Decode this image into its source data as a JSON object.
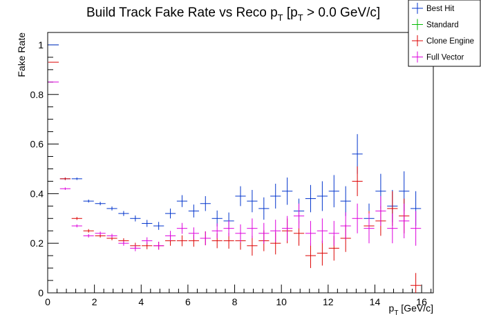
{
  "chart_data": {
    "type": "scatter",
    "title": {
      "main": "Build Track Fake Rate vs Reco p",
      "sub1": "T",
      "mid": " [p",
      "sub2": "T",
      "tail": " > 0.0 GeV/c]"
    },
    "xlabel": {
      "main": "p",
      "sub": "T",
      "tail": " [GeV/c]"
    },
    "ylabel": "Fake Rate",
    "xlim": [
      0,
      16.5
    ],
    "ylim": [
      0,
      1.05
    ],
    "xticks": [
      "0",
      "2",
      "4",
      "6",
      "8",
      "10",
      "12",
      "14",
      "16"
    ],
    "yticks": [
      "0",
      "0.2",
      "0.4",
      "0.6",
      "0.8",
      "1"
    ],
    "legend_position": "top-right",
    "series": [
      {
        "name": "Best Hit",
        "color": "#0033cc",
        "points": [
          [
            0.25,
            1.0,
            0.0
          ],
          [
            0.75,
            0.46,
            0.005
          ],
          [
            1.25,
            0.46,
            0.005
          ],
          [
            1.75,
            0.37,
            0.006
          ],
          [
            2.25,
            0.36,
            0.007
          ],
          [
            2.75,
            0.34,
            0.008
          ],
          [
            3.25,
            0.32,
            0.01
          ],
          [
            3.75,
            0.3,
            0.012
          ],
          [
            4.25,
            0.28,
            0.014
          ],
          [
            4.75,
            0.27,
            0.016
          ],
          [
            5.25,
            0.32,
            0.02
          ],
          [
            5.75,
            0.37,
            0.024
          ],
          [
            6.25,
            0.33,
            0.026
          ],
          [
            6.75,
            0.36,
            0.03
          ],
          [
            7.25,
            0.3,
            0.032
          ],
          [
            7.75,
            0.29,
            0.034
          ],
          [
            8.25,
            0.39,
            0.04
          ],
          [
            8.75,
            0.37,
            0.045
          ],
          [
            9.25,
            0.34,
            0.045
          ],
          [
            9.75,
            0.39,
            0.05
          ],
          [
            10.25,
            0.41,
            0.055
          ],
          [
            10.75,
            0.33,
            0.05
          ],
          [
            11.25,
            0.38,
            0.055
          ],
          [
            11.75,
            0.39,
            0.06
          ],
          [
            12.25,
            0.41,
            0.065
          ],
          [
            12.75,
            0.37,
            0.06
          ],
          [
            13.25,
            0.56,
            0.08
          ],
          [
            13.75,
            0.3,
            0.06
          ],
          [
            14.25,
            0.41,
            0.07
          ],
          [
            14.75,
            0.35,
            0.065
          ],
          [
            15.25,
            0.41,
            0.08
          ],
          [
            15.75,
            0.34,
            0.07
          ]
        ]
      },
      {
        "name": "Standard",
        "color": "#00bb00",
        "points": []
      },
      {
        "name": "Clone Engine",
        "color": "#dd0000",
        "points": [
          [
            0.25,
            0.93,
            0.0
          ],
          [
            0.75,
            0.46,
            0.005
          ],
          [
            1.25,
            0.3,
            0.006
          ],
          [
            1.75,
            0.25,
            0.007
          ],
          [
            2.25,
            0.23,
            0.007
          ],
          [
            2.75,
            0.22,
            0.008
          ],
          [
            3.25,
            0.21,
            0.01
          ],
          [
            3.75,
            0.19,
            0.012
          ],
          [
            4.25,
            0.19,
            0.014
          ],
          [
            4.75,
            0.19,
            0.016
          ],
          [
            5.25,
            0.21,
            0.02
          ],
          [
            5.75,
            0.21,
            0.022
          ],
          [
            6.25,
            0.21,
            0.024
          ],
          [
            6.75,
            0.22,
            0.028
          ],
          [
            7.25,
            0.21,
            0.03
          ],
          [
            7.75,
            0.21,
            0.032
          ],
          [
            8.25,
            0.21,
            0.036
          ],
          [
            8.75,
            0.19,
            0.04
          ],
          [
            9.25,
            0.21,
            0.042
          ],
          [
            9.75,
            0.2,
            0.045
          ],
          [
            10.25,
            0.25,
            0.05
          ],
          [
            10.75,
            0.24,
            0.05
          ],
          [
            11.25,
            0.15,
            0.05
          ],
          [
            11.75,
            0.16,
            0.05
          ],
          [
            12.25,
            0.18,
            0.05
          ],
          [
            12.75,
            0.22,
            0.055
          ],
          [
            13.25,
            0.45,
            0.06
          ],
          [
            13.75,
            0.27,
            0.06
          ],
          [
            14.25,
            0.29,
            0.06
          ],
          [
            14.75,
            0.34,
            0.07
          ],
          [
            15.25,
            0.31,
            0.07
          ],
          [
            15.75,
            0.03,
            0.05
          ]
        ]
      },
      {
        "name": "Full Vector",
        "color": "#dd00dd",
        "points": [
          [
            0.25,
            0.85,
            0.0
          ],
          [
            0.75,
            0.42,
            0.005
          ],
          [
            1.25,
            0.27,
            0.006
          ],
          [
            1.75,
            0.23,
            0.007
          ],
          [
            2.25,
            0.24,
            0.007
          ],
          [
            2.75,
            0.23,
            0.008
          ],
          [
            3.25,
            0.2,
            0.01
          ],
          [
            3.75,
            0.18,
            0.012
          ],
          [
            4.25,
            0.21,
            0.014
          ],
          [
            4.75,
            0.19,
            0.016
          ],
          [
            5.25,
            0.23,
            0.02
          ],
          [
            5.75,
            0.26,
            0.022
          ],
          [
            6.25,
            0.24,
            0.024
          ],
          [
            6.75,
            0.22,
            0.028
          ],
          [
            7.25,
            0.25,
            0.03
          ],
          [
            7.75,
            0.26,
            0.032
          ],
          [
            8.25,
            0.24,
            0.036
          ],
          [
            8.75,
            0.26,
            0.04
          ],
          [
            9.25,
            0.24,
            0.042
          ],
          [
            9.75,
            0.25,
            0.045
          ],
          [
            10.25,
            0.26,
            0.05
          ],
          [
            10.75,
            0.31,
            0.05
          ],
          [
            11.25,
            0.24,
            0.05
          ],
          [
            11.75,
            0.25,
            0.05
          ],
          [
            12.25,
            0.24,
            0.05
          ],
          [
            12.75,
            0.27,
            0.055
          ],
          [
            13.25,
            0.3,
            0.06
          ],
          [
            13.75,
            0.26,
            0.06
          ],
          [
            14.25,
            0.33,
            0.06
          ],
          [
            14.75,
            0.26,
            0.06
          ],
          [
            15.25,
            0.29,
            0.07
          ],
          [
            15.75,
            0.26,
            0.07
          ]
        ]
      }
    ]
  }
}
